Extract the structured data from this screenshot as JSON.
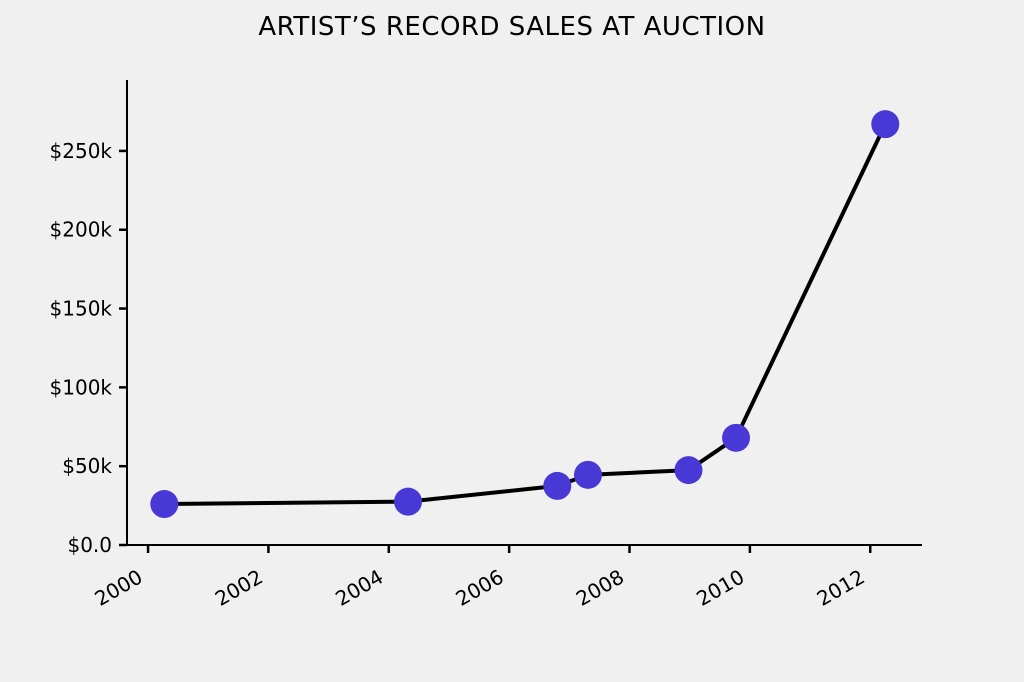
{
  "figure": {
    "background_color": "#f0f0f0"
  },
  "chart_data": {
    "type": "line",
    "title": "ARTIST’S RECORD SALES AT AUCTION",
    "xlabel": "",
    "ylabel": "",
    "x": [
      2000.27,
      2004.32,
      2006.8,
      2007.31,
      2008.98,
      2009.77,
      2012.25
    ],
    "y": [
      26000,
      27500,
      37500,
      44500,
      47500,
      68000,
      267000
    ],
    "series_name": "record-sale-price-usd",
    "x_ticks": {
      "values": [
        2000,
        2002,
        2004,
        2006,
        2008,
        2010,
        2012
      ],
      "labels": [
        "2000",
        "2002",
        "2004",
        "2006",
        "2008",
        "2010",
        "2012"
      ],
      "rotation_deg": 30
    },
    "y_ticks": {
      "values": [
        0,
        50000,
        100000,
        150000,
        200000,
        250000
      ],
      "labels": [
        "$0.0",
        "$50k",
        "$100k",
        "$150k",
        "$200k",
        "$250k"
      ]
    },
    "xlim": [
      1999.65,
      2012.86
    ],
    "ylim": [
      0,
      295000
    ],
    "grid": false,
    "legend": "none",
    "line_color": "#000000",
    "line_width": 4,
    "axis_color": "#000000",
    "tick_font_size": 20,
    "marker": {
      "shape": "circle",
      "radius": 14,
      "color": "#4839d6"
    }
  }
}
